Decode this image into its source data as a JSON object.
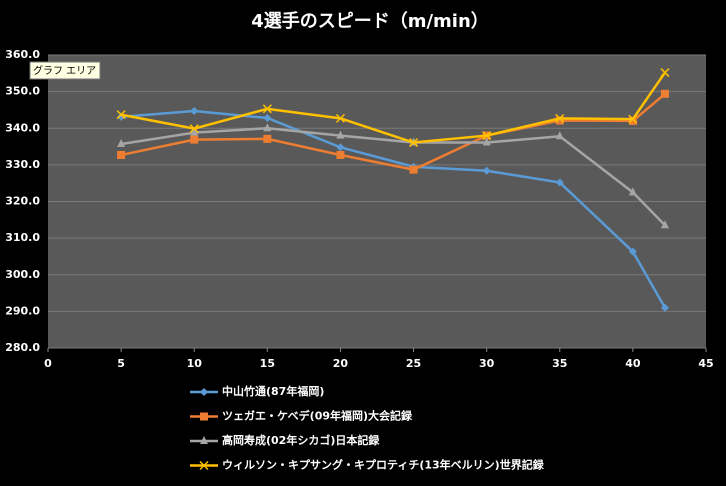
{
  "chart_data": {
    "type": "line",
    "title": "4選手のスピード（m/min）",
    "x": [
      5,
      10,
      15,
      20,
      25,
      30,
      35,
      40,
      42.195
    ],
    "series": [
      {
        "name": "中山竹通(87年福岡)",
        "color": "#5b9bd5",
        "marker": "diamond",
        "values": [
          343.1,
          344.7,
          342.8,
          334.8,
          329.5,
          328.4,
          325.2,
          306.3,
          291.0
        ]
      },
      {
        "name": "ツェガエ・ケベデ(09年福岡)大会記録",
        "color": "#ed7d31",
        "marker": "square",
        "values": [
          332.7,
          336.9,
          337.1,
          332.7,
          328.7,
          338.0,
          342.1,
          342.0,
          349.4
        ]
      },
      {
        "name": "高岡寿成(02年シカゴ)日本記録",
        "color": "#a5a5a5",
        "marker": "triangle",
        "values": [
          335.7,
          338.8,
          340.0,
          338.0,
          336.1,
          336.1,
          337.8,
          322.5,
          313.5
        ]
      },
      {
        "name": "ウィルソン・キプサング・キプロティチ(13年ベルリン)世界記録",
        "color": "#ffc000",
        "marker": "x",
        "values": [
          343.7,
          339.9,
          345.3,
          342.7,
          336.1,
          338.0,
          342.7,
          342.5,
          355.2
        ]
      }
    ],
    "xlim": [
      0,
      45
    ],
    "xticks": [
      0,
      5,
      10,
      15,
      20,
      25,
      30,
      35,
      40,
      45
    ],
    "ylim": [
      280,
      360
    ],
    "yticks": [
      {
        "value": 280,
        "label": "280.0"
      },
      {
        "value": 290,
        "label": "290.0"
      },
      {
        "value": 300,
        "label": "300.0"
      },
      {
        "value": 310,
        "label": "310.0"
      },
      {
        "value": 320,
        "label": "320.0"
      },
      {
        "value": 330,
        "label": "330.0"
      },
      {
        "value": 340,
        "label": "340.0"
      },
      {
        "value": 350,
        "label": "350.0"
      },
      {
        "value": 360,
        "label": "360.0"
      }
    ],
    "grid": true,
    "legend": "bottom"
  },
  "tooltip": "グラフ エリア"
}
